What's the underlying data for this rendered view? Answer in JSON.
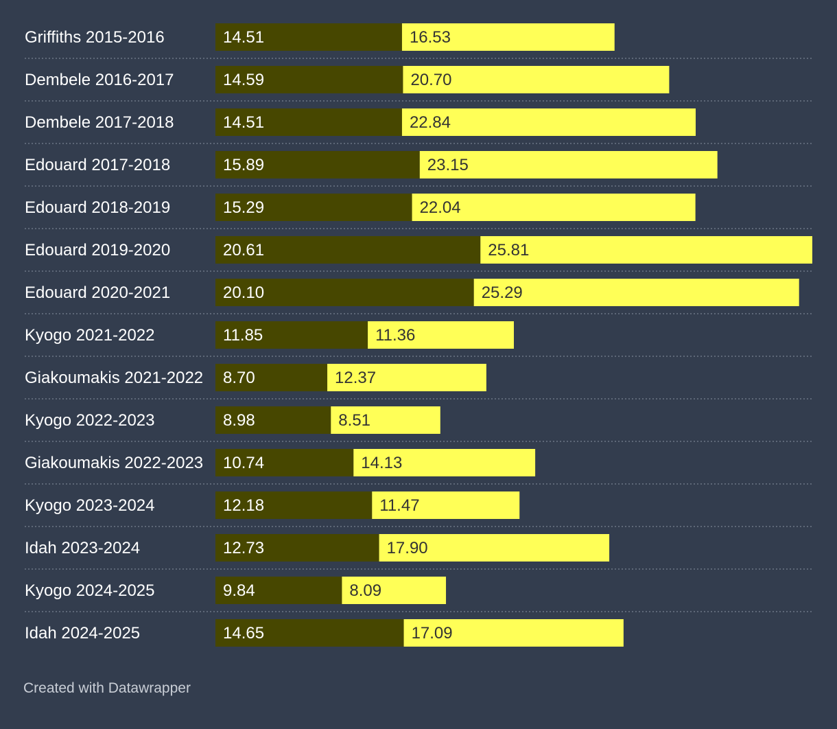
{
  "chart_data": {
    "type": "bar",
    "orientation": "horizontal",
    "stacked": true,
    "categories": [
      "Griffiths 2015-2016",
      "Dembele 2016-2017",
      "Dembele 2017-2018",
      "Edouard 2017-2018",
      "Edouard 2018-2019",
      "Edouard 2019-2020",
      "Edouard 2020-2021",
      "Kyogo 2021-2022",
      "Giakoumakis 2021-2022",
      "Kyogo 2022-2023",
      "Giakoumakis 2022-2023",
      "Kyogo 2023-2024",
      "Idah 2023-2024",
      "Kyogo 2024-2025",
      "Idah 2024-2025"
    ],
    "series": [
      {
        "color": "#474700",
        "values": [
          14.51,
          14.59,
          14.51,
          15.89,
          15.29,
          20.61,
          20.1,
          11.85,
          8.7,
          8.98,
          10.74,
          12.18,
          12.73,
          9.84,
          14.65
        ],
        "labels": [
          "14.51",
          "14.59",
          "14.51",
          "15.89",
          "15.29",
          "20.61",
          "20.10",
          "11.85",
          "8.70",
          "8.98",
          "10.74",
          "12.18",
          "12.73",
          "9.84",
          "14.65"
        ]
      },
      {
        "color": "#ffff57",
        "values": [
          16.53,
          20.7,
          22.84,
          23.15,
          22.04,
          25.81,
          25.29,
          11.36,
          12.37,
          8.51,
          14.13,
          11.47,
          17.9,
          8.09,
          17.09
        ],
        "labels": [
          "16.53",
          "20.70",
          "22.84",
          "23.15",
          "22.04",
          "25.81",
          "25.29",
          "11.36",
          "12.37",
          "8.51",
          "14.13",
          "11.47",
          "17.90",
          "8.09",
          "17.09"
        ]
      }
    ],
    "xlim": [
      0,
      46.42
    ]
  },
  "footer": {
    "credit": "Created with Datawrapper"
  }
}
